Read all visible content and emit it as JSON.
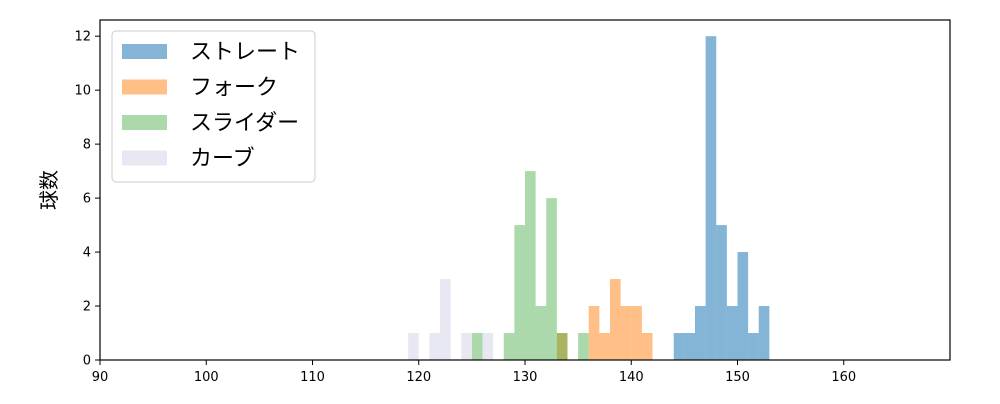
{
  "chart_data": {
    "type": "histogram",
    "title": "",
    "xlabel": "",
    "ylabel": "球数",
    "xlim": [
      90,
      170
    ],
    "ylim": [
      0,
      12.6
    ],
    "xticks": [
      90,
      100,
      110,
      120,
      130,
      140,
      150,
      160
    ],
    "yticks": [
      0,
      2,
      4,
      6,
      8,
      10,
      12
    ],
    "bin_width": 1,
    "grid": false,
    "legend_position": "top-left",
    "series": [
      {
        "name": "ストレート",
        "color": "#1f77b4",
        "opacity": 0.55,
        "bins": [
          {
            "x0": 144,
            "x1": 145,
            "count": 1
          },
          {
            "x0": 145,
            "x1": 146,
            "count": 1
          },
          {
            "x0": 146,
            "x1": 147,
            "count": 2
          },
          {
            "x0": 147,
            "x1": 148,
            "count": 12
          },
          {
            "x0": 148,
            "x1": 149,
            "count": 5
          },
          {
            "x0": 149,
            "x1": 150,
            "count": 2
          },
          {
            "x0": 150,
            "x1": 151,
            "count": 4
          },
          {
            "x0": 151,
            "x1": 152,
            "count": 1
          },
          {
            "x0": 152,
            "x1": 153,
            "count": 2
          }
        ]
      },
      {
        "name": "フォーク",
        "color": "#ff7f0e",
        "opacity": 0.5,
        "bins": [
          {
            "x0": 133,
            "x1": 134,
            "count": 1
          },
          {
            "x0": 136,
            "x1": 137,
            "count": 2
          },
          {
            "x0": 137,
            "x1": 138,
            "count": 1
          },
          {
            "x0": 138,
            "x1": 139,
            "count": 3
          },
          {
            "x0": 139,
            "x1": 140,
            "count": 2
          },
          {
            "x0": 140,
            "x1": 141,
            "count": 2
          },
          {
            "x0": 141,
            "x1": 142,
            "count": 1
          }
        ]
      },
      {
        "name": "スライダー",
        "color": "#2ca02c",
        "opacity": 0.4,
        "bins": [
          {
            "x0": 125,
            "x1": 126,
            "count": 1
          },
          {
            "x0": 128,
            "x1": 129,
            "count": 1
          },
          {
            "x0": 129,
            "x1": 130,
            "count": 5
          },
          {
            "x0": 130,
            "x1": 131,
            "count": 7
          },
          {
            "x0": 131,
            "x1": 132,
            "count": 2
          },
          {
            "x0": 132,
            "x1": 133,
            "count": 6
          },
          {
            "x0": 133,
            "x1": 134,
            "count": 1
          },
          {
            "x0": 135,
            "x1": 136,
            "count": 1
          }
        ]
      },
      {
        "name": "カーブ",
        "color": "#d8d8ea",
        "opacity": 0.6,
        "bins": [
          {
            "x0": 119,
            "x1": 120,
            "count": 1
          },
          {
            "x0": 121,
            "x1": 122,
            "count": 1
          },
          {
            "x0": 122,
            "x1": 123,
            "count": 3
          },
          {
            "x0": 124,
            "x1": 125,
            "count": 1
          },
          {
            "x0": 126,
            "x1": 127,
            "count": 1
          }
        ]
      }
    ]
  }
}
